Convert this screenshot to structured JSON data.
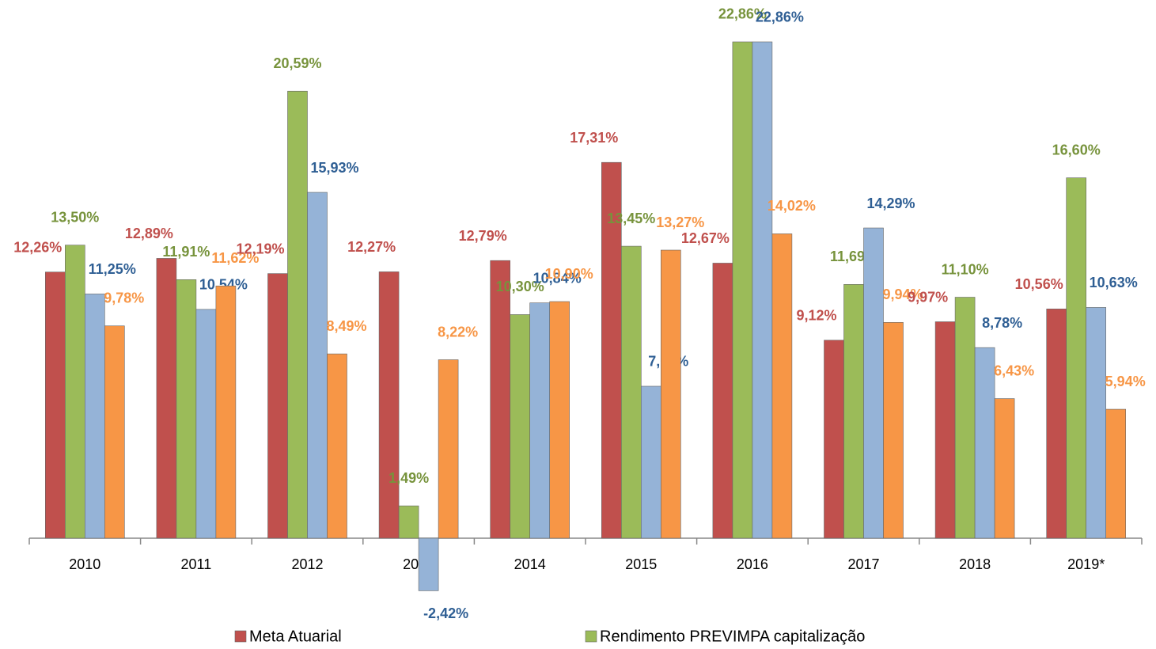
{
  "chart_data": {
    "type": "bar",
    "categories": [
      "2010",
      "2011",
      "2012",
      "2013",
      "2014",
      "2015",
      "2016",
      "2017",
      "2018",
      "2019*"
    ],
    "series": [
      {
        "name": "Meta Atuarial",
        "color": "#c0504d",
        "label_color": "#c0504d",
        "values": [
          12.26,
          12.89,
          12.19,
          12.27,
          12.79,
          17.31,
          12.67,
          9.12,
          9.97,
          10.56
        ],
        "value_labels": [
          "12,26%",
          "12,89%",
          "12,19%",
          "12,27%",
          "12,79%",
          "17,31%",
          "12,67%",
          "9,12%",
          "9,97%",
          "10,56%"
        ]
      },
      {
        "name": "Rendimento PREVIMPA capitalização",
        "color": "#9bbb59",
        "label_color": "#77933c",
        "values": [
          13.5,
          11.91,
          20.59,
          1.49,
          10.3,
          13.45,
          22.86,
          11.69,
          11.1,
          16.6
        ],
        "value_labels": [
          "13,50%",
          "11,91%",
          "20,59%",
          "1,49%",
          "10,30%",
          "13,45%",
          "22,86%",
          "11,69%",
          "11,10%",
          "16,60%"
        ]
      },
      {
        "color": "#95b3d7",
        "label_color": "#2f5f94",
        "values": [
          11.25,
          10.54,
          15.93,
          -2.42,
          10.84,
          7.0,
          22.86,
          14.29,
          8.78,
          10.63
        ],
        "value_labels": [
          "11,25%",
          "10,54%",
          "15,93%",
          "-2,42%",
          "10,84%",
          "7,00%",
          "22,86%",
          "14,29%",
          "8,78%",
          "10,63%"
        ]
      },
      {
        "color": "#f79646",
        "label_color": "#f79646",
        "values": [
          9.78,
          11.62,
          8.49,
          8.22,
          10.9,
          13.27,
          14.02,
          9.94,
          6.43,
          5.94
        ],
        "value_labels": [
          "9,78%",
          "11,62%",
          "8,49%",
          "8,22%",
          "10,90%",
          "13,27%",
          "14,02%",
          "9,94%",
          "6,43%",
          "5,94%"
        ]
      }
    ]
  }
}
